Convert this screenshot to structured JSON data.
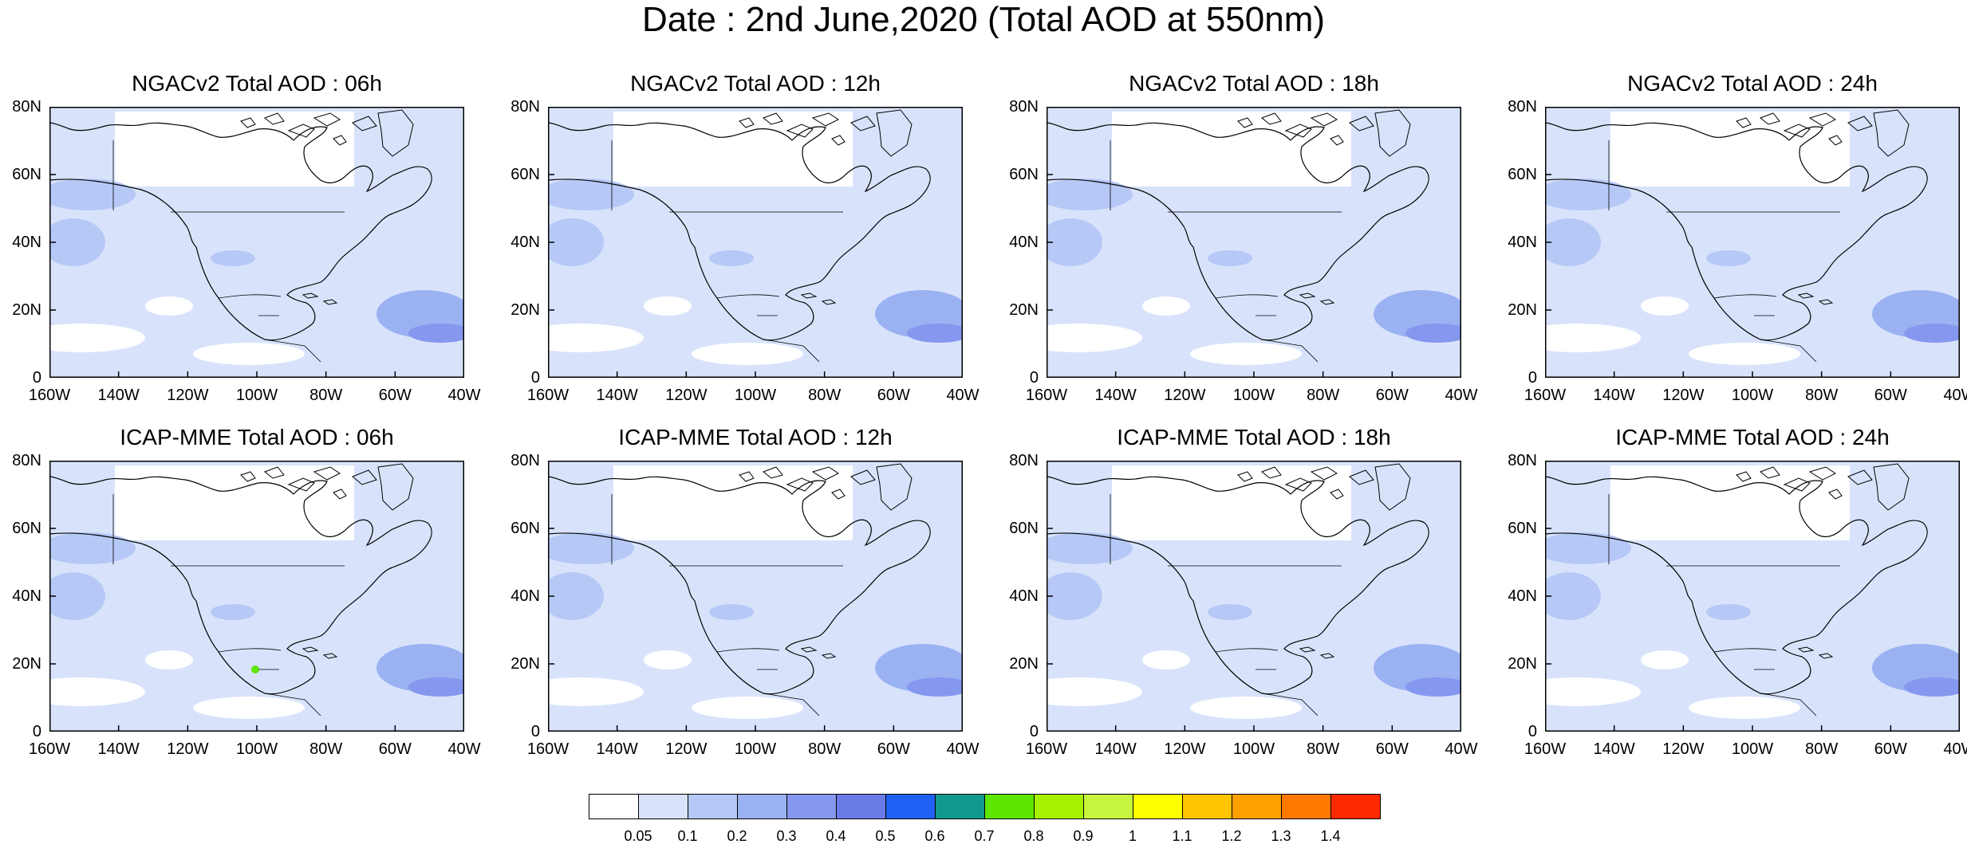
{
  "title": "Date : 2nd June,2020 (Total AOD at 550nm)",
  "panels": [
    {
      "title": "NGACv2 Total AOD : 06h",
      "hotspot": false
    },
    {
      "title": "NGACv2 Total AOD : 12h",
      "hotspot": false
    },
    {
      "title": "NGACv2 Total AOD : 18h",
      "hotspot": false
    },
    {
      "title": "NGACv2 Total AOD : 24h",
      "hotspot": false
    },
    {
      "title": "ICAP-MME Total AOD : 06h",
      "hotspot": true
    },
    {
      "title": "ICAP-MME Total AOD : 12h",
      "hotspot": false
    },
    {
      "title": "ICAP-MME Total AOD : 18h",
      "hotspot": false
    },
    {
      "title": "ICAP-MME Total AOD : 24h",
      "hotspot": false
    }
  ],
  "axes": {
    "lat_labels": [
      "80N",
      "60N",
      "40N",
      "20N",
      "0"
    ],
    "lon_labels": [
      "160W",
      "140W",
      "120W",
      "100W",
      "80W",
      "60W",
      "40W"
    ]
  },
  "colorbar": {
    "colors": [
      "#ffffff",
      "#d8e3fb",
      "#b6c8f6",
      "#9ab2f2",
      "#8597ee",
      "#6a7be8",
      "#1f60f5",
      "#11988f",
      "#5ce600",
      "#a6f000",
      "#c7f53d",
      "#ffff00",
      "#ffc400",
      "#ffa000",
      "#ff7800",
      "#ff2a00"
    ],
    "labels": [
      "0.05",
      "0.1",
      "0.2",
      "0.3",
      "0.4",
      "0.5",
      "0.6",
      "0.7",
      "0.8",
      "0.9",
      "1",
      "1.1",
      "1.2",
      "1.3",
      "1.4"
    ]
  }
}
